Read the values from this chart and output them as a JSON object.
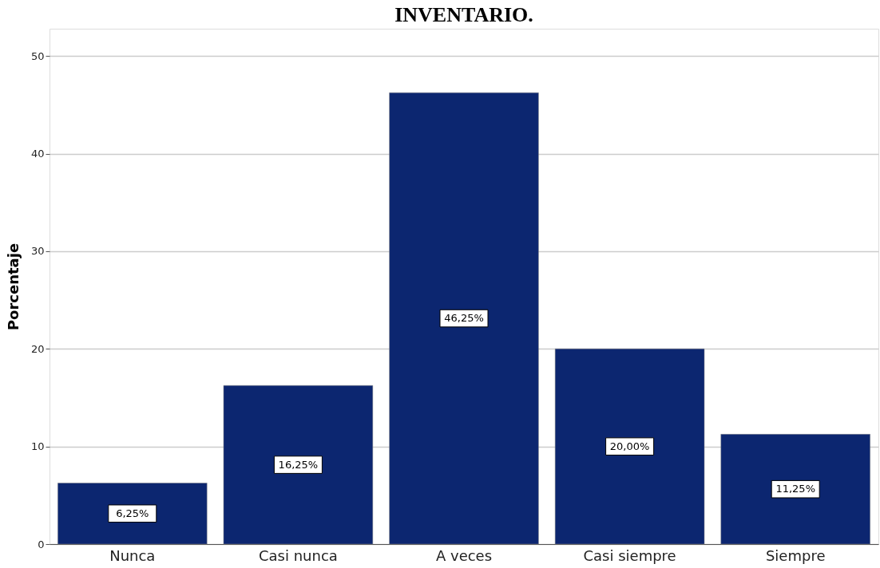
{
  "chart_data": {
    "type": "bar",
    "title": "INVENTARIO.",
    "ylabel": "Porcentaje",
    "categories": [
      "Nunca",
      "Casi nunca",
      "A veces",
      "Casi siempre",
      "Siempre"
    ],
    "values": [
      6.25,
      16.25,
      46.25,
      20.0,
      11.25
    ],
    "value_labels": [
      "6,25%",
      "16,25%",
      "46,25%",
      "20,00%",
      "11,25%"
    ],
    "color": "#0c2670",
    "ylim": [
      0,
      52.8
    ],
    "yticks": [
      0,
      10,
      20,
      30,
      40,
      50
    ],
    "grid": "y"
  }
}
